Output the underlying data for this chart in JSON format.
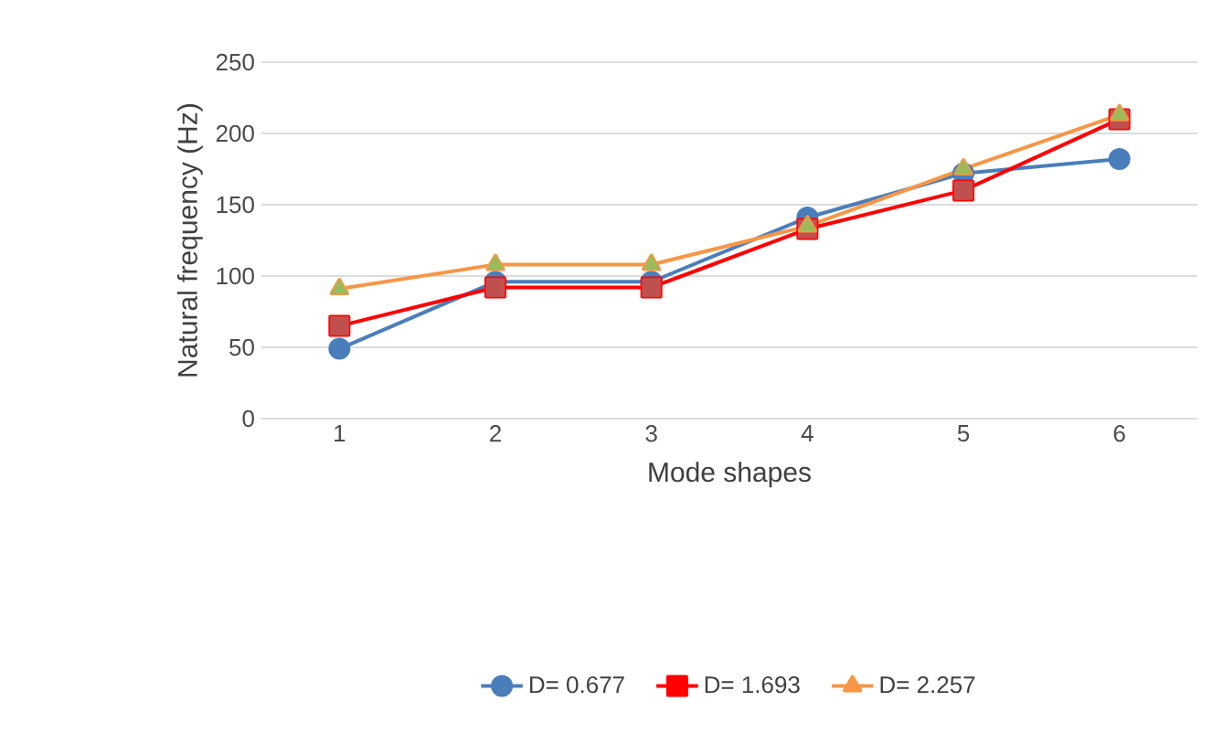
{
  "chart_data": {
    "type": "line",
    "xlabel": "Mode shapes",
    "ylabel": "Natural frequency (Hz)",
    "categories": [
      "1",
      "2",
      "3",
      "4",
      "5",
      "6"
    ],
    "series": [
      {
        "name": "D= 0.677",
        "color": "#4a7ebb",
        "marker": "circle",
        "values": [
          49,
          96,
          96,
          141,
          172,
          182
        ]
      },
      {
        "name": "D= 1.693",
        "color": "#ff0000",
        "colors": [
          "#c0504d",
          "#c0504d",
          "#c0504d",
          "#c0504d",
          "#c0504d",
          "#c0504d"
        ],
        "marker": "square",
        "values": [
          65,
          92,
          92,
          133,
          160,
          210
        ]
      },
      {
        "name": "D= 2.257",
        "color": "#f79646",
        "colors": [
          "#9bbb59",
          "#9bbb59",
          "#9bbb59",
          "#9bbb59",
          "#9bbb59",
          "#9bbb59"
        ],
        "marker": "triangle",
        "values": [
          91,
          108,
          108,
          135,
          175,
          213
        ]
      }
    ],
    "ylim": [
      0,
      250
    ],
    "yticks": [
      0,
      50,
      100,
      150,
      200,
      250
    ],
    "grid": "y",
    "legend": "bottom",
    "line_style": "solid"
  }
}
